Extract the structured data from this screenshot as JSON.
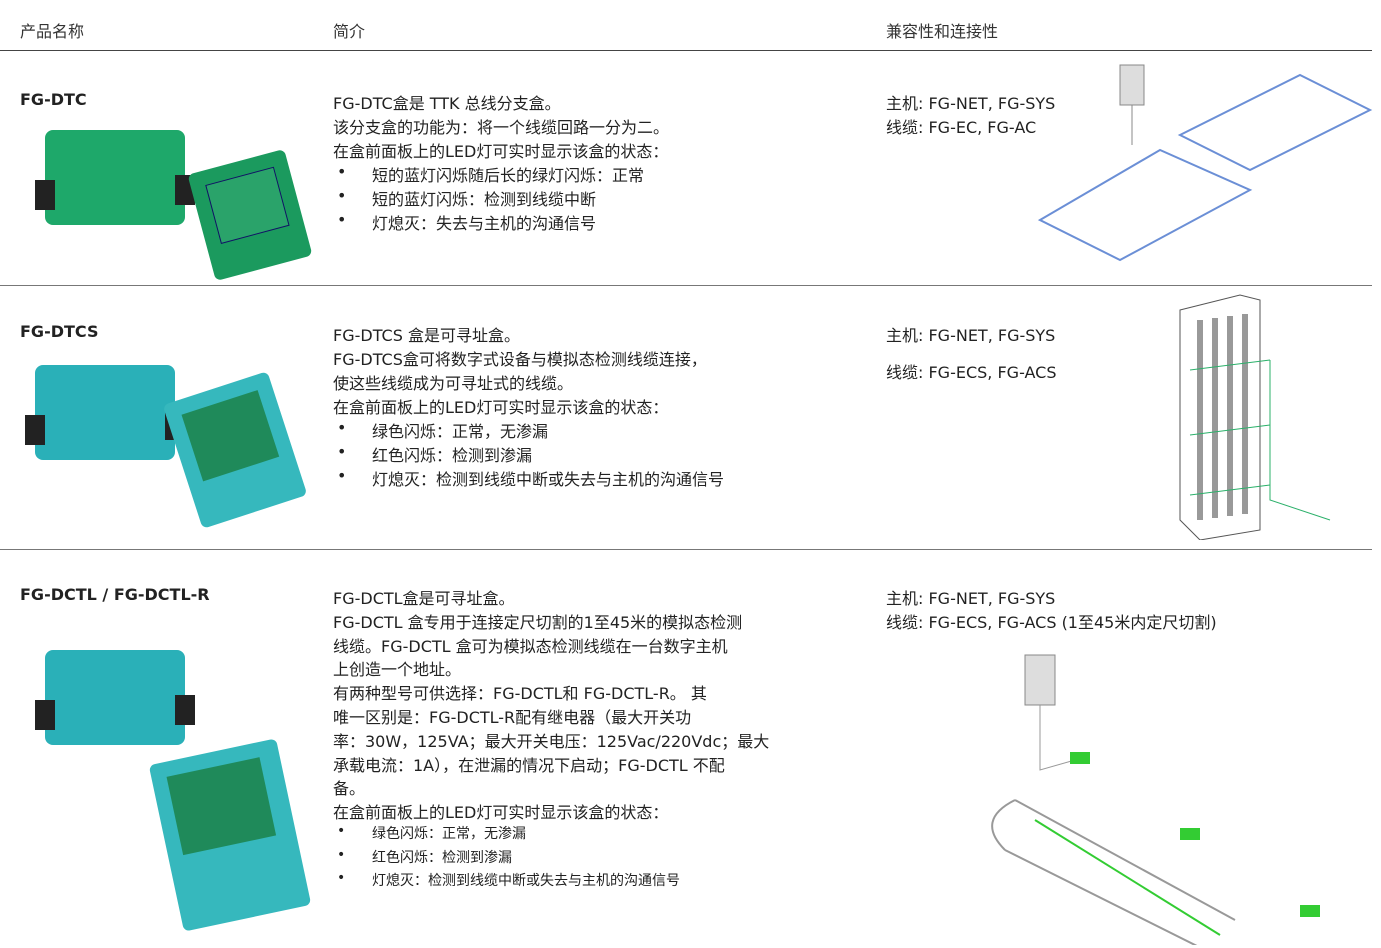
{
  "header": {
    "columns": [
      "产品名称",
      "简介",
      "兼容性和连接性"
    ]
  },
  "table": {
    "rows": [
      {
        "name": "FG-DTC",
        "intro": [
          "FG-DTC盒是 TTK 总线分支盒。",
          "该分支盒的功能为：将一个线缆回路一分为二。",
          "在盒前面板上的LED灯可实时显示该盒的状态："
        ],
        "bullets": [
          "短的蓝灯闪烁随后长的绿灯闪烁：正常",
          "短的蓝灯闪烁：检测到线缆中断",
          "灯熄灭：失去与主机的沟通信号"
        ],
        "compat": [
          "主机: FG-NET, FG-SYS",
          "线缆: FG-EC, FG-AC"
        ]
      },
      {
        "name": "FG-DTCS",
        "intro": [
          "FG-DTCS 盒是可寻址盒。",
          "FG-DTCS盒可将数字式设备与模拟态检测线缆连接，",
          "使这些线缆成为可寻址式的线缆。",
          "在盒前面板上的LED灯可实时显示该盒的状态："
        ],
        "bullets": [
          "绿色闪烁：正常，无渗漏",
          "红色闪烁：检测到渗漏",
          "灯熄灭：检测到线缆中断或失去与主机的沟通信号"
        ],
        "compat": [
          "主机: FG-NET, FG-SYS",
          "线缆: FG-ECS, FG-ACS"
        ]
      },
      {
        "name": "FG-DCTL / FG-DCTL-R",
        "intro": [
          "FG-DCTL盒是可寻址盒。",
          "FG-DCTL 盒专用于连接定尺切割的1至45米的模拟态检测",
          "线缆。FG-DCTL 盒可为模拟态检测线缆在一台数字主机",
          "上创造一个地址。",
          "有两种型号可供选择：FG-DCTL和 FG-DCTL-R。 其",
          "唯一区别是：FG-DCTL-R配有继电器（最大开关功",
          "率：30W，125VA；最大开关电压：125Vac/220Vdc；最大",
          "承载电流：1A），在泄漏的情况下启动；FG-DCTL 不配",
          "备。",
          "在盒前面板上的LED灯可实时显示该盒的状态："
        ],
        "bullets": [
          "绿色闪烁：正常，无渗漏",
          "红色闪烁：检测到渗漏",
          "灯熄灭：检测到线缆中断或失去与主机的沟通信号"
        ],
        "compat": [
          "主机: FG-NET, FG-SYS",
          "线缆: FG-ECS, FG-ACS (1至45米内定尺切割)"
        ]
      }
    ]
  }
}
